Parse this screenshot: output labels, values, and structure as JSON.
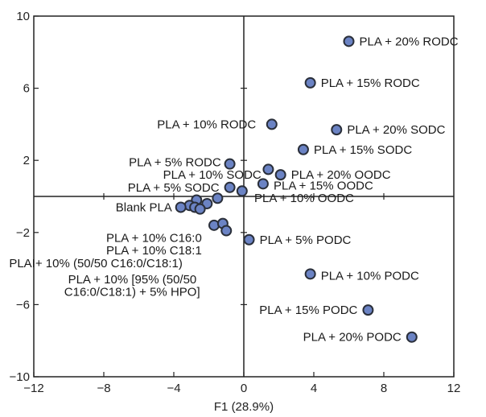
{
  "chart_data": {
    "type": "scatter",
    "xlabel": "F1 (28.9%)",
    "ylabel": "",
    "xlim": [
      -12,
      12
    ],
    "ylim": [
      -10,
      10
    ],
    "xticks": [
      -12,
      -8,
      -4,
      0,
      4,
      8,
      12
    ],
    "yticks": [
      -10,
      -6,
      -2,
      2,
      6,
      10
    ],
    "xtick_labels": [
      "−12",
      "−8",
      "−4",
      "0",
      "4",
      "8",
      "12"
    ],
    "ytick_labels": [
      "−10",
      "−6",
      "−2",
      "2",
      "6",
      "10"
    ],
    "grid": false,
    "marker_color": "#6b83c4",
    "marker_edge": "#2a2f3a",
    "points": [
      {
        "x": 6.0,
        "y": 8.6
      },
      {
        "x": 3.8,
        "y": 6.3
      },
      {
        "x": 1.6,
        "y": 4.0
      },
      {
        "x": 5.3,
        "y": 3.7
      },
      {
        "x": 3.4,
        "y": 2.6
      },
      {
        "x": -0.8,
        "y": 1.8
      },
      {
        "x": 1.4,
        "y": 1.5
      },
      {
        "x": 2.1,
        "y": 1.2
      },
      {
        "x": 1.1,
        "y": 0.7
      },
      {
        "x": -0.8,
        "y": 0.5
      },
      {
        "x": -0.1,
        "y": 0.3
      },
      {
        "x": -1.5,
        "y": -0.1
      },
      {
        "x": -2.7,
        "y": -0.2
      },
      {
        "x": -2.1,
        "y": -0.4
      },
      {
        "x": -3.1,
        "y": -0.5
      },
      {
        "x": -3.6,
        "y": -0.6
      },
      {
        "x": -2.8,
        "y": -0.6
      },
      {
        "x": -2.5,
        "y": -0.7
      },
      {
        "x": -1.7,
        "y": -1.6
      },
      {
        "x": -1.2,
        "y": -1.5
      },
      {
        "x": -1.0,
        "y": -1.9
      },
      {
        "x": 0.3,
        "y": -2.4
      },
      {
        "x": 3.8,
        "y": -4.3
      },
      {
        "x": 7.1,
        "y": -6.3
      },
      {
        "x": 9.6,
        "y": -7.8
      }
    ],
    "annotations": [
      {
        "text": "PLA + 20% RODC",
        "x": 6.6,
        "y": 8.6,
        "anchor": "start"
      },
      {
        "text": "PLA + 15% RODC",
        "x": 4.4,
        "y": 6.3,
        "anchor": "start"
      },
      {
        "text": "PLA + 10% RODC",
        "x": 0.7,
        "y": 4.0,
        "anchor": "end"
      },
      {
        "text": "PLA + 20% SODC",
        "x": 5.9,
        "y": 3.7,
        "anchor": "start"
      },
      {
        "text": "PLA + 15% SODC",
        "x": 4.0,
        "y": 2.6,
        "anchor": "start"
      },
      {
        "text": "PLA + 5% RODC",
        "x": -1.3,
        "y": 1.9,
        "anchor": "end"
      },
      {
        "text": "PLA + 10% SODC",
        "x": 1.0,
        "y": 1.2,
        "anchor": "end"
      },
      {
        "text": "PLA + 20% OODC",
        "x": 2.7,
        "y": 1.2,
        "anchor": "start"
      },
      {
        "text": "PLA + 15% OODC",
        "x": 1.7,
        "y": 0.6,
        "anchor": "start"
      },
      {
        "text": "PLA + 5% SODC",
        "x": -1.4,
        "y": 0.5,
        "anchor": "end"
      },
      {
        "text": "PLA + 10% OODC",
        "x": 0.6,
        "y": -0.1,
        "anchor": "start"
      },
      {
        "text": "Blank PLA",
        "x": -4.1,
        "y": -0.6,
        "anchor": "end"
      },
      {
        "text": "PLA + 10% C16:0",
        "x": -2.4,
        "y": -2.3,
        "anchor": "end"
      },
      {
        "text": "PLA + 10% C18:1",
        "x": -2.4,
        "y": -3.0,
        "anchor": "end"
      },
      {
        "text": "PLAI+ 10% (50/50 C16:0/C18:1)",
        "x": -3.5,
        "y": -3.7,
        "anchor": "end"
      },
      {
        "text": "PLA + 10% [95% (50/50",
        "x": -2.7,
        "y": -4.6,
        "anchor": "end"
      },
      {
        "text": "C16:0/C18:1) + 5% HPO]",
        "x": -2.5,
        "y": -5.3,
        "anchor": "end"
      },
      {
        "text": "PLA + 5% PODC",
        "x": 0.9,
        "y": -2.4,
        "anchor": "start"
      },
      {
        "text": "PLA + 10% PODC",
        "x": 4.4,
        "y": -4.4,
        "anchor": "start"
      },
      {
        "text": "PLA + 15% PODC",
        "x": 6.5,
        "y": -6.3,
        "anchor": "end"
      },
      {
        "text": "PLA + 20% PODC",
        "x": 9.0,
        "y": -7.8,
        "anchor": "end"
      }
    ]
  }
}
